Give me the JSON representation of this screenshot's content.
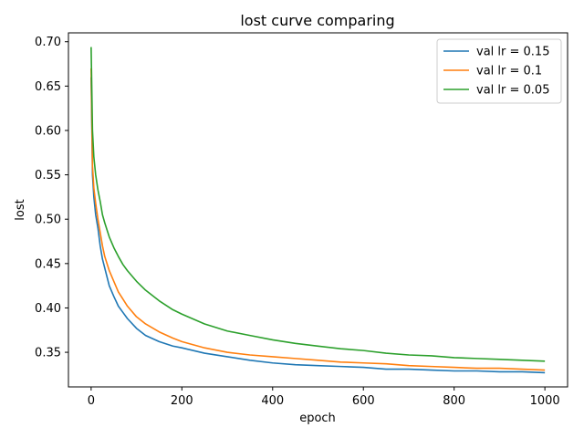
{
  "chart_data": {
    "type": "line",
    "title": "lost curve comparing",
    "xlabel": "epoch",
    "ylabel": "lost",
    "xlim": [
      -50,
      1050
    ],
    "ylim": [
      0.311,
      0.71
    ],
    "xticks": [
      0,
      200,
      400,
      600,
      800,
      1000
    ],
    "xtick_labels": [
      "0",
      "200",
      "400",
      "600",
      "800",
      "1000"
    ],
    "yticks": [
      0.35,
      0.4,
      0.45,
      0.5,
      0.55,
      0.6,
      0.65,
      0.7
    ],
    "ytick_labels": [
      "0.35",
      "0.40",
      "0.45",
      "0.50",
      "0.55",
      "0.60",
      "0.65",
      "0.70"
    ],
    "grid": false,
    "legend_position": "top-right",
    "series": [
      {
        "name": "val lr = 0.15",
        "color": "#1f77b4",
        "x": [
          0,
          3,
          6,
          10,
          15,
          20,
          25,
          30,
          40,
          50,
          60,
          70,
          80,
          100,
          120,
          150,
          180,
          200,
          250,
          300,
          350,
          400,
          450,
          500,
          550,
          600,
          650,
          700,
          750,
          800,
          850,
          900,
          950,
          1000
        ],
        "y": [
          0.66,
          0.55,
          0.525,
          0.505,
          0.49,
          0.47,
          0.455,
          0.445,
          0.425,
          0.413,
          0.402,
          0.395,
          0.388,
          0.377,
          0.369,
          0.362,
          0.357,
          0.355,
          0.349,
          0.345,
          0.341,
          0.338,
          0.336,
          0.335,
          0.334,
          0.333,
          0.331,
          0.331,
          0.33,
          0.329,
          0.329,
          0.328,
          0.328,
          0.327
        ]
      },
      {
        "name": "val lr = 0.1",
        "color": "#ff7f0e",
        "x": [
          0,
          3,
          6,
          10,
          15,
          20,
          25,
          30,
          40,
          50,
          60,
          70,
          80,
          100,
          120,
          150,
          180,
          200,
          250,
          300,
          350,
          400,
          450,
          500,
          550,
          600,
          650,
          700,
          750,
          800,
          850,
          900,
          950,
          1000
        ],
        "y": [
          0.67,
          0.56,
          0.535,
          0.518,
          0.5,
          0.485,
          0.47,
          0.458,
          0.442,
          0.43,
          0.418,
          0.41,
          0.402,
          0.39,
          0.382,
          0.373,
          0.366,
          0.362,
          0.355,
          0.35,
          0.347,
          0.345,
          0.343,
          0.341,
          0.339,
          0.338,
          0.337,
          0.335,
          0.334,
          0.333,
          0.332,
          0.332,
          0.331,
          0.33
        ]
      },
      {
        "name": "val lr = 0.05",
        "color": "#2ca02c",
        "x": [
          0,
          3,
          6,
          10,
          15,
          20,
          25,
          30,
          40,
          50,
          60,
          70,
          80,
          100,
          120,
          150,
          180,
          200,
          250,
          300,
          350,
          400,
          450,
          500,
          550,
          600,
          650,
          700,
          750,
          800,
          850,
          900,
          950,
          1000
        ],
        "y": [
          0.694,
          0.6,
          0.57,
          0.55,
          0.533,
          0.52,
          0.505,
          0.496,
          0.48,
          0.468,
          0.458,
          0.449,
          0.442,
          0.43,
          0.42,
          0.408,
          0.398,
          0.393,
          0.382,
          0.374,
          0.369,
          0.364,
          0.36,
          0.357,
          0.354,
          0.352,
          0.349,
          0.347,
          0.346,
          0.344,
          0.343,
          0.342,
          0.341,
          0.34
        ]
      }
    ]
  }
}
